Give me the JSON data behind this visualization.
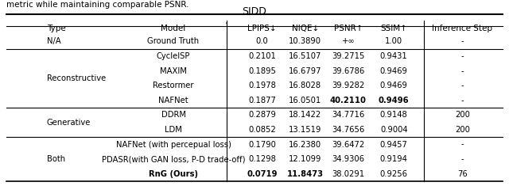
{
  "title": "SIDD",
  "header_top": [
    "Type",
    "Model",
    "LPIPS↓",
    "NIQE↓",
    "PSNR↑",
    "SSIM↑",
    "Inference Step"
  ],
  "rows": [
    {
      "type": "N/A",
      "model": "Ground Truth",
      "lpips": "0.0",
      "niqe": "10.3890",
      "psnr": "+∞",
      "ssim": "1.00",
      "steps": "-",
      "bold_lpips": false,
      "bold_niqe": false,
      "bold_psnr": false,
      "bold_ssim": false,
      "group": "na"
    },
    {
      "type": "Reconstructive",
      "model": "CycleISP",
      "lpips": "0.2101",
      "niqe": "16.5107",
      "psnr": "39.2715",
      "ssim": "0.9431",
      "steps": "-",
      "bold_lpips": false,
      "bold_niqe": false,
      "bold_psnr": false,
      "bold_ssim": false,
      "group": "reconstructive"
    },
    {
      "type": "",
      "model": "MAXIM",
      "lpips": "0.1895",
      "niqe": "16.6797",
      "psnr": "39.6786",
      "ssim": "0.9469",
      "steps": "-",
      "bold_lpips": false,
      "bold_niqe": false,
      "bold_psnr": false,
      "bold_ssim": false,
      "group": "reconstructive"
    },
    {
      "type": "",
      "model": "Restormer",
      "lpips": "0.1978",
      "niqe": "16.8028",
      "psnr": "39.9282",
      "ssim": "0.9469",
      "steps": "-",
      "bold_lpips": false,
      "bold_niqe": false,
      "bold_psnr": false,
      "bold_ssim": false,
      "group": "reconstructive"
    },
    {
      "type": "",
      "model": "NAFNet",
      "lpips": "0.1877",
      "niqe": "16.0501",
      "psnr": "40.2110",
      "ssim": "0.9496",
      "steps": "-",
      "bold_lpips": false,
      "bold_niqe": false,
      "bold_psnr": true,
      "bold_ssim": true,
      "group": "reconstructive"
    },
    {
      "type": "Generative",
      "model": "DDRM",
      "lpips": "0.2879",
      "niqe": "18.1422",
      "psnr": "34.7716",
      "ssim": "0.9148",
      "steps": "200",
      "bold_lpips": false,
      "bold_niqe": false,
      "bold_psnr": false,
      "bold_ssim": false,
      "group": "generative"
    },
    {
      "type": "",
      "model": "LDM",
      "lpips": "0.0852",
      "niqe": "13.1519",
      "psnr": "34.7656",
      "ssim": "0.9004",
      "steps": "200",
      "bold_lpips": false,
      "bold_niqe": false,
      "bold_psnr": false,
      "bold_ssim": false,
      "group": "generative"
    },
    {
      "type": "Both",
      "model": "NAFNet (with percepual loss)",
      "lpips": "0.1790",
      "niqe": "16.2380",
      "psnr": "39.6472",
      "ssim": "0.9457",
      "steps": "-",
      "bold_lpips": false,
      "bold_niqe": false,
      "bold_psnr": false,
      "bold_ssim": false,
      "group": "both"
    },
    {
      "type": "",
      "model": "PDASR(with GAN loss, P-D trade-off)",
      "lpips": "0.1298",
      "niqe": "12.1099",
      "psnr": "34.9306",
      "ssim": "0.9194",
      "steps": "-",
      "bold_lpips": false,
      "bold_niqe": false,
      "bold_psnr": false,
      "bold_ssim": false,
      "group": "both"
    },
    {
      "type": "",
      "model": "RnG (Ours)",
      "lpips": "0.0719",
      "niqe": "11.8473",
      "psnr": "38.0291",
      "ssim": "0.9256",
      "steps": "76",
      "bold_lpips": true,
      "bold_niqe": true,
      "bold_psnr": false,
      "bold_ssim": false,
      "group": "both"
    }
  ],
  "bg_color": "#ffffff",
  "text_color": "#000000",
  "line_color": "#000000"
}
